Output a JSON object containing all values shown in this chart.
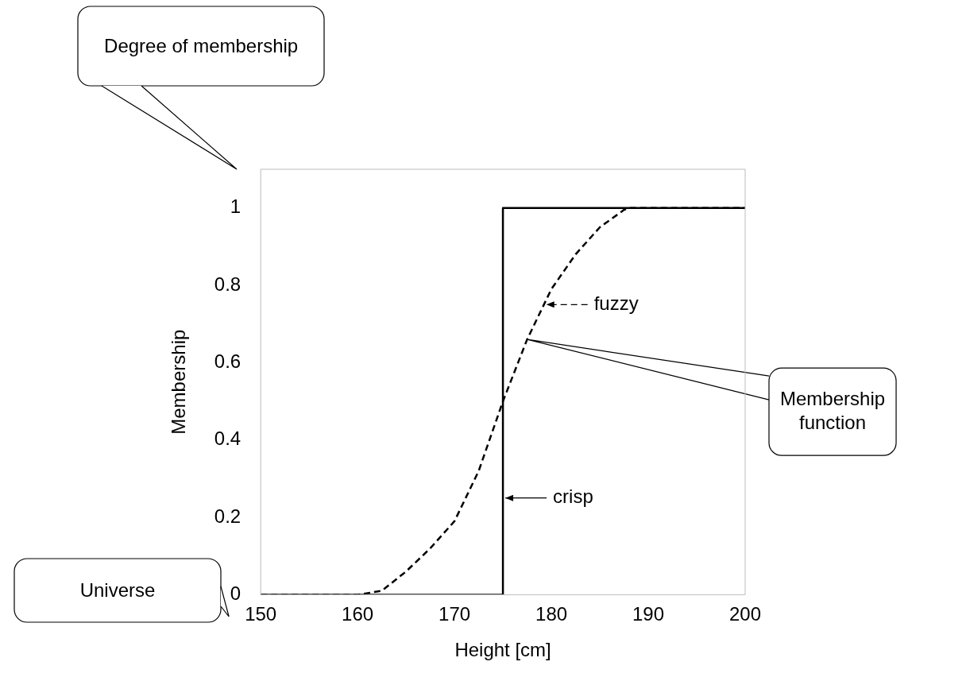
{
  "chart_data": {
    "type": "line",
    "xlabel": "Height [cm]",
    "ylabel": "Membership",
    "xlim": [
      150,
      200
    ],
    "xticks": [
      150,
      160,
      170,
      180,
      190,
      200
    ],
    "ylim": [
      0,
      1.1
    ],
    "yticks": [
      0,
      0.2,
      0.4,
      0.6,
      0.8,
      1
    ],
    "grid": false,
    "marker": "none",
    "legend": "center",
    "series": [
      {
        "name": "crisp",
        "color": "#000000",
        "line_style": "solid",
        "x": [
          150,
          175,
          175,
          200
        ],
        "values": [
          0,
          0,
          1,
          1
        ]
      },
      {
        "name": "fuzzy",
        "color": "#000000",
        "line_style": "dashed",
        "x": [
          150,
          160,
          162.5,
          165,
          167.5,
          170,
          172.5,
          175,
          177.5,
          180,
          182.5,
          185,
          187.5,
          188,
          200
        ],
        "values": [
          0,
          0,
          0.01,
          0.06,
          0.12,
          0.19,
          0.32,
          0.5,
          0.66,
          0.79,
          0.88,
          0.95,
          0.995,
          1,
          1
        ]
      }
    ],
    "annotations": [
      "Degree of membership",
      "Universe",
      "Membership function"
    ]
  }
}
